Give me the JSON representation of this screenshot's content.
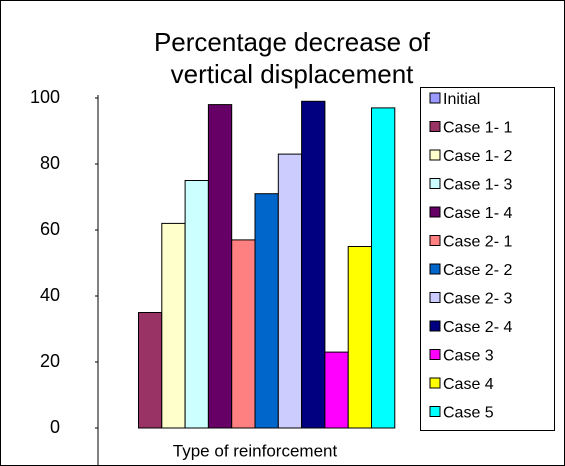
{
  "chart_data": {
    "type": "bar",
    "title": [
      "Percentage decrease of",
      "vertical displacement"
    ],
    "categories": [
      "Type of reinforcement"
    ],
    "series": [
      {
        "name": "Initial",
        "color": "#9999ff",
        "values": [
          0
        ]
      },
      {
        "name": "Case 1- 1",
        "color": "#993366",
        "values": [
          35
        ]
      },
      {
        "name": "Case 1- 2",
        "color": "#ffffcc",
        "values": [
          62
        ]
      },
      {
        "name": "Case 1- 3",
        "color": "#ccffff",
        "values": [
          75
        ]
      },
      {
        "name": "Case 1- 4",
        "color": "#660066",
        "values": [
          98
        ]
      },
      {
        "name": "Case 2- 1",
        "color": "#ff8080",
        "values": [
          57
        ]
      },
      {
        "name": "Case 2- 2",
        "color": "#0066cc",
        "values": [
          71
        ]
      },
      {
        "name": "Case 2- 3",
        "color": "#ccccff",
        "values": [
          83
        ]
      },
      {
        "name": "Case 2- 4",
        "color": "#000080",
        "values": [
          99
        ]
      },
      {
        "name": "Case 3",
        "color": "#ff00ff",
        "values": [
          23
        ]
      },
      {
        "name": "Case 4",
        "color": "#ffff00",
        "values": [
          55
        ]
      },
      {
        "name": "Case 5",
        "color": "#00ffff",
        "values": [
          97
        ]
      }
    ],
    "ylim": [
      0,
      100
    ],
    "yticks": [
      0,
      20,
      40,
      60,
      80,
      100
    ],
    "legend": "right"
  }
}
